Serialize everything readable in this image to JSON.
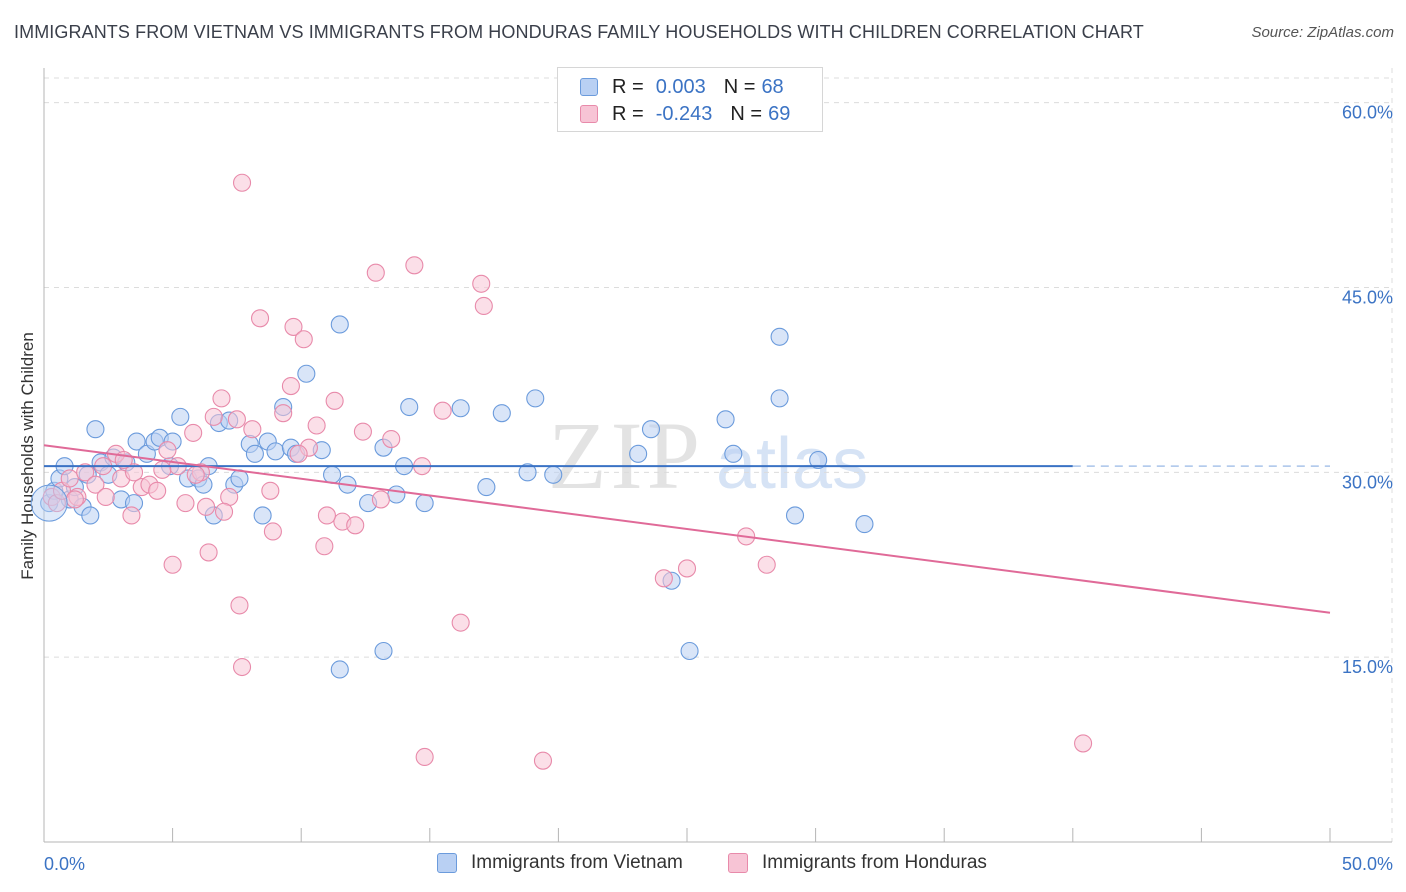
{
  "title": "IMMIGRANTS FROM VIETNAM VS IMMIGRANTS FROM HONDURAS FAMILY HOUSEHOLDS WITH CHILDREN CORRELATION CHART",
  "source": "Source: ZipAtlas.com",
  "watermark": {
    "zip": "ZIP",
    "atlas": "atlas"
  },
  "legend": {
    "rows": [
      {
        "r_label": "R =",
        "r_value": "0.003",
        "n_label": "N =",
        "n_value": "68"
      },
      {
        "r_label": "R =",
        "r_value": "-0.243",
        "n_label": "N =",
        "n_value": "69"
      }
    ]
  },
  "colors": {
    "vietnam_fill": "#b9d0f3",
    "vietnam_stroke": "#6b9bdc",
    "vietnam_line": "#3a72c4",
    "honduras_fill": "#f7c4d5",
    "honduras_stroke": "#e88aaa",
    "honduras_line": "#e06a98",
    "grid": "#dcdcdc",
    "tick_text": "#3b73c4"
  },
  "chart_data": {
    "type": "scatter",
    "title": "IMMIGRANTS FROM VIETNAM VS IMMIGRANTS FROM HONDURAS FAMILY HOUSEHOLDS WITH CHILDREN CORRELATION CHART",
    "xlabel": "",
    "ylabel": "Family Households with Children",
    "xlim": [
      0,
      50
    ],
    "ylim": [
      0,
      62
    ],
    "x_tick_labels": [
      "0.0%",
      "50.0%"
    ],
    "y_ticks": [
      15,
      30,
      45,
      60
    ],
    "y_tick_labels": [
      "15.0%",
      "30.0%",
      "45.0%",
      "60.0%"
    ],
    "grid": true,
    "legend_position": "top-center",
    "series": [
      {
        "name": "Immigrants from Vietnam",
        "points": [
          [
            0.2,
            27.5
          ],
          [
            0.4,
            28.5
          ],
          [
            0.6,
            29.5
          ],
          [
            0.8,
            30.5
          ],
          [
            1.0,
            27.8
          ],
          [
            1.2,
            28.8
          ],
          [
            1.5,
            27.2
          ],
          [
            1.7,
            29.8
          ],
          [
            1.8,
            26.5
          ],
          [
            2.0,
            33.5
          ],
          [
            2.2,
            30.8
          ],
          [
            2.5,
            29.8
          ],
          [
            2.7,
            31.2
          ],
          [
            3.0,
            27.8
          ],
          [
            3.2,
            30.8
          ],
          [
            3.5,
            27.5
          ],
          [
            3.6,
            32.5
          ],
          [
            4.0,
            31.5
          ],
          [
            4.3,
            32.5
          ],
          [
            4.5,
            32.8
          ],
          [
            4.9,
            30.5
          ],
          [
            5.0,
            32.5
          ],
          [
            5.3,
            34.5
          ],
          [
            5.6,
            29.5
          ],
          [
            6.0,
            29.5
          ],
          [
            6.2,
            29.0
          ],
          [
            6.4,
            30.5
          ],
          [
            6.6,
            26.5
          ],
          [
            6.8,
            34.0
          ],
          [
            7.2,
            34.2
          ],
          [
            7.4,
            29.0
          ],
          [
            7.6,
            29.5
          ],
          [
            8.0,
            32.3
          ],
          [
            8.2,
            31.5
          ],
          [
            8.5,
            26.5
          ],
          [
            8.7,
            32.5
          ],
          [
            9.0,
            31.7
          ],
          [
            9.3,
            35.3
          ],
          [
            9.6,
            32.0
          ],
          [
            9.8,
            31.5
          ],
          [
            10.2,
            38.0
          ],
          [
            10.8,
            31.8
          ],
          [
            11.2,
            29.8
          ],
          [
            11.5,
            42.0
          ],
          [
            11.8,
            29.0
          ],
          [
            12.6,
            27.5
          ],
          [
            13.2,
            32.0
          ],
          [
            13.7,
            28.2
          ],
          [
            14.0,
            30.5
          ],
          [
            14.2,
            35.3
          ],
          [
            14.8,
            27.5
          ],
          [
            16.2,
            35.2
          ],
          [
            17.2,
            28.8
          ],
          [
            17.8,
            34.8
          ],
          [
            18.8,
            30.0
          ],
          [
            19.1,
            36.0
          ],
          [
            19.8,
            29.8
          ],
          [
            11.5,
            14.0
          ],
          [
            13.2,
            15.5
          ],
          [
            23.1,
            31.5
          ],
          [
            23.6,
            33.5
          ],
          [
            24.4,
            21.2
          ],
          [
            25.1,
            15.5
          ],
          [
            26.5,
            34.3
          ],
          [
            26.8,
            31.5
          ],
          [
            28.6,
            36.0
          ],
          [
            28.6,
            41.0
          ],
          [
            29.2,
            26.5
          ],
          [
            30.1,
            31.0
          ],
          [
            31.9,
            25.8
          ]
        ],
        "trend": {
          "x": [
            0.0,
            40.0
          ],
          "y": [
            30.5,
            30.5
          ]
        },
        "trend_dashed": {
          "x": [
            40.0,
            50.0
          ],
          "y": [
            30.5,
            30.5
          ]
        }
      },
      {
        "name": "Immigrants from Honduras",
        "points": [
          [
            0.3,
            28.0
          ],
          [
            0.5,
            27.5
          ],
          [
            0.7,
            28.5
          ],
          [
            1.0,
            29.5
          ],
          [
            1.3,
            28.0
          ],
          [
            1.6,
            30.0
          ],
          [
            2.0,
            29.0
          ],
          [
            2.4,
            28.0
          ],
          [
            2.8,
            31.5
          ],
          [
            3.0,
            29.5
          ],
          [
            3.4,
            26.5
          ],
          [
            3.8,
            28.8
          ],
          [
            4.1,
            29.0
          ],
          [
            4.4,
            28.5
          ],
          [
            4.8,
            31.8
          ],
          [
            5.2,
            30.5
          ],
          [
            5.5,
            27.5
          ],
          [
            5.8,
            33.2
          ],
          [
            6.1,
            30.0
          ],
          [
            6.3,
            27.2
          ],
          [
            6.6,
            34.5
          ],
          [
            6.9,
            36.0
          ],
          [
            7.2,
            28.0
          ],
          [
            7.5,
            34.3
          ],
          [
            7.6,
            19.2
          ],
          [
            8.1,
            33.5
          ],
          [
            8.4,
            42.5
          ],
          [
            8.9,
            25.2
          ],
          [
            9.3,
            34.8
          ],
          [
            9.6,
            37.0
          ],
          [
            9.7,
            41.8
          ],
          [
            10.1,
            40.8
          ],
          [
            10.3,
            32.0
          ],
          [
            10.6,
            33.8
          ],
          [
            10.9,
            24.0
          ],
          [
            11.3,
            35.8
          ],
          [
            11.6,
            26.0
          ],
          [
            12.1,
            25.7
          ],
          [
            12.4,
            33.3
          ],
          [
            12.9,
            46.2
          ],
          [
            13.1,
            27.8
          ],
          [
            13.5,
            32.7
          ],
          [
            14.4,
            46.8
          ],
          [
            14.7,
            30.5
          ],
          [
            15.5,
            35.0
          ],
          [
            16.2,
            17.8
          ],
          [
            17.0,
            45.3
          ],
          [
            17.1,
            43.5
          ],
          [
            7.7,
            53.5
          ],
          [
            7.7,
            14.2
          ],
          [
            3.5,
            30.0
          ],
          [
            5.0,
            22.5
          ],
          [
            6.4,
            23.5
          ],
          [
            14.8,
            6.9
          ],
          [
            19.4,
            6.6
          ],
          [
            24.1,
            21.4
          ],
          [
            25.0,
            22.2
          ],
          [
            27.3,
            24.8
          ],
          [
            28.1,
            22.5
          ],
          [
            40.4,
            8.0
          ],
          [
            1.2,
            27.8
          ],
          [
            2.3,
            30.5
          ],
          [
            3.1,
            31.0
          ],
          [
            4.6,
            30.2
          ],
          [
            5.9,
            29.8
          ],
          [
            7.0,
            26.8
          ],
          [
            8.8,
            28.5
          ],
          [
            9.9,
            31.5
          ],
          [
            11.0,
            26.5
          ]
        ],
        "trend": {
          "x": [
            0.0,
            50.0
          ],
          "y": [
            32.2,
            18.6
          ]
        }
      }
    ]
  },
  "bottom_legend": [
    {
      "label": "Immigrants from Vietnam"
    },
    {
      "label": "Immigrants from Honduras"
    }
  ]
}
